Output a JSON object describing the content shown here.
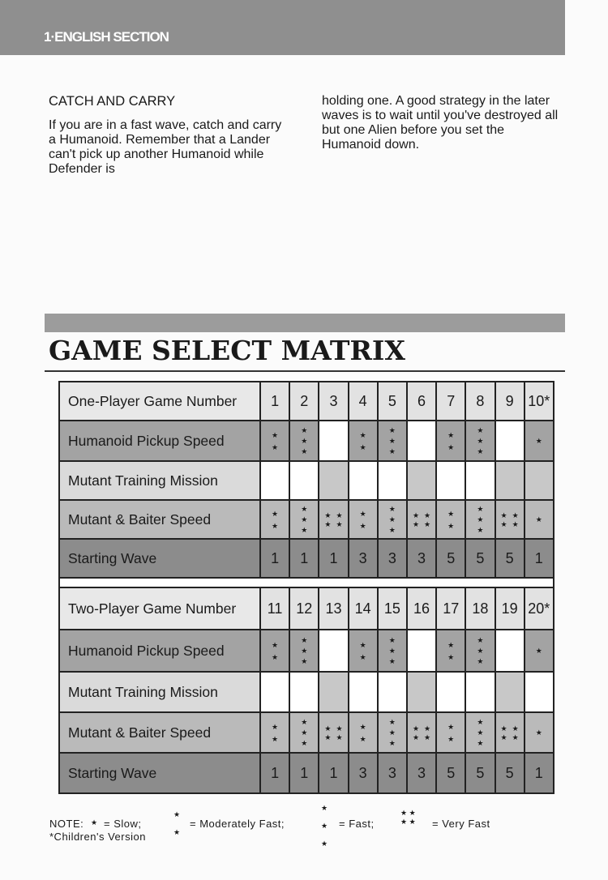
{
  "header": {
    "section": "1·ENGLISH SECTION"
  },
  "article": {
    "heading": "CATCH AND CARRY",
    "col1": "If you are in a fast wave, catch and carry a Humanoid. Remember that a Lander can't pick up another Humanoid while Defender is",
    "col2": "holding one. A good strategy in the later waves is to wait until you've destroyed all but one Alien before you set the Humanoid down."
  },
  "title": "GAME SELECT MATRIX",
  "colors": {
    "header_row": "#e2e2e2",
    "pickup_row": "#a3a3a3",
    "training_row": "#dadada",
    "baiter_row": "#bababa",
    "wave_row": "#8c8c8c",
    "blank": "#ffffff"
  },
  "tables": [
    {
      "game_label": "One-Player Game Number",
      "games": [
        "1",
        "2",
        "3",
        "4",
        "5",
        "6",
        "7",
        "8",
        "9",
        "10*"
      ],
      "pickup_label": "Humanoid Pickup Speed",
      "pickup": [
        2,
        3,
        0,
        2,
        3,
        0,
        2,
        3,
        0,
        1
      ],
      "training_label": "Mutant Training Mission",
      "training": [
        false,
        false,
        true,
        false,
        false,
        true,
        false,
        false,
        true,
        true
      ],
      "baiter_label": "Mutant & Baiter Speed",
      "baiter": [
        2,
        3,
        4,
        2,
        3,
        4,
        2,
        3,
        4,
        1
      ],
      "wave_label": "Starting Wave",
      "wave": [
        "1",
        "1",
        "1",
        "3",
        "3",
        "3",
        "5",
        "5",
        "5",
        "1"
      ]
    },
    {
      "game_label": "Two-Player Game Number",
      "games": [
        "11",
        "12",
        "13",
        "14",
        "15",
        "16",
        "17",
        "18",
        "19",
        "20*"
      ],
      "pickup_label": "Humanoid Pickup Speed",
      "pickup": [
        2,
        3,
        0,
        2,
        3,
        0,
        2,
        3,
        0,
        1
      ],
      "training_label": "Mutant Training Mission",
      "training": [
        false,
        false,
        true,
        false,
        false,
        true,
        false,
        false,
        true,
        false
      ],
      "baiter_label": "Mutant & Baiter Speed",
      "baiter": [
        2,
        3,
        4,
        2,
        3,
        4,
        2,
        3,
        4,
        1
      ],
      "wave_label": "Starting Wave",
      "wave": [
        "1",
        "1",
        "1",
        "3",
        "3",
        "3",
        "5",
        "5",
        "5",
        "1"
      ]
    }
  ],
  "note": {
    "prefix": "NOTE:",
    "slow": "= Slow;",
    "moderately_fast": "= Moderately Fast;",
    "fast": "= Fast;",
    "very_fast": "= Very Fast",
    "children": "*Children's Version"
  }
}
